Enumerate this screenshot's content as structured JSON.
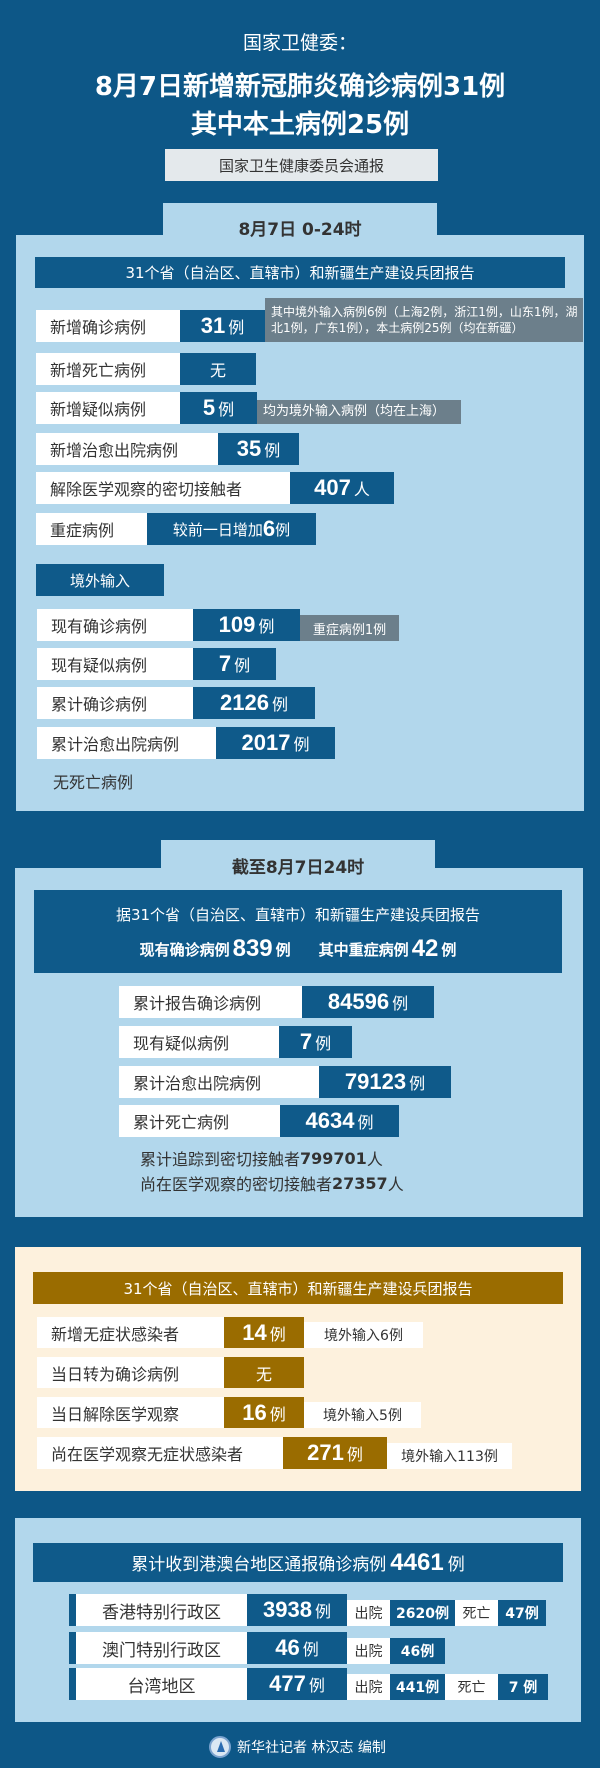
{
  "colors": {
    "background": "#0d5787",
    "panel": "#b2d7ec",
    "value_box": "#0f5a8a",
    "note_box": "#6c7f8b",
    "asymptomatic_panel": "#fdf1dd",
    "asymptomatic_accent": "#9a6c00"
  },
  "header": {
    "subtitle": "国家卫健委：",
    "title_line1": "8月7日新增新冠肺炎确诊病例31例",
    "title_line2": "其中本土病例25例",
    "source": "国家卫生健康委员会通报"
  },
  "daily": {
    "tab": "8月7日 0-24时",
    "banner": "31个省（自治区、直辖市）和新疆生产建设兵团报告",
    "rows": [
      {
        "label": "新增确诊病例",
        "value": "31",
        "unit": "例",
        "note": "其中境外输入病例6例（上海2例，浙江1例，山东1例，湖北1例，广东1例），本土病例25例（均在新疆）"
      },
      {
        "label": "新增死亡病例",
        "value": "无"
      },
      {
        "label": "新增疑似病例",
        "value": "5",
        "unit": "例",
        "note": "均为境外输入病例（均在上海）"
      },
      {
        "label": "新增治愈出院病例",
        "value": "35",
        "unit": "例"
      },
      {
        "label": "解除医学观察的密切接触者",
        "value": "407",
        "unit": "人"
      },
      {
        "label": "重症病例",
        "prefix": "较前一日增加",
        "value": "6",
        "unit": "例"
      }
    ],
    "overseas": {
      "tab": "境外输入",
      "rows": [
        {
          "label": "现有确诊病例",
          "value": "109",
          "unit": "例",
          "note": "重症病例1例"
        },
        {
          "label": "现有疑似病例",
          "value": "7",
          "unit": "例"
        },
        {
          "label": "累计确诊病例",
          "value": "2126",
          "unit": "例"
        },
        {
          "label": "累计治愈出院病例",
          "value": "2017",
          "unit": "例"
        }
      ],
      "footnote": "无死亡病例"
    }
  },
  "cumulative": {
    "tab": "截至8月7日24时",
    "banner": "据31个省（自治区、直辖市）和新疆生产建设兵团报告",
    "current_label": "现有确诊病例",
    "current_value": "839",
    "current_unit": "例",
    "severe_label": "其中重症病例",
    "severe_value": "42",
    "severe_unit": "例",
    "rows": [
      {
        "label": "累计报告确诊病例",
        "value": "84596",
        "unit": "例"
      },
      {
        "label": "现有疑似病例",
        "value": "7",
        "unit": "例"
      },
      {
        "label": "累计治愈出院病例",
        "value": "79123",
        "unit": "例"
      },
      {
        "label": "累计死亡病例",
        "value": "4634",
        "unit": "例"
      }
    ],
    "traced": {
      "label": "累计追踪到密切接触者",
      "value": "799701",
      "unit": "人"
    },
    "observed": {
      "label": "尚在医学观察的密切接触者",
      "value": "27357",
      "unit": "人"
    }
  },
  "asymptomatic": {
    "banner": "31个省（自治区、直辖市）和新疆生产建设兵团报告",
    "rows": [
      {
        "label": "新增无症状感染者",
        "value": "14",
        "unit": "例",
        "note": "境外输入6例"
      },
      {
        "label": "当日转为确诊病例",
        "value": "无"
      },
      {
        "label": "当日解除医学观察",
        "value": "16",
        "unit": "例",
        "note": "境外输入5例"
      },
      {
        "label": "尚在医学观察无症状感染者",
        "value": "271",
        "unit": "例",
        "note": "境外输入113例"
      }
    ]
  },
  "hmt": {
    "banner_label": "累计收到港澳台地区通报确诊病例",
    "total": "4461",
    "unit": "例",
    "regions": [
      {
        "name": "香港特别行政区",
        "value": "3938",
        "unit": "例",
        "discharged_label": "出院",
        "discharged": "2620例",
        "death_label": "死亡",
        "deaths": "47例"
      },
      {
        "name": "澳门特别行政区",
        "value": "46",
        "unit": "例",
        "discharged_label": "出院",
        "discharged": "46例"
      },
      {
        "name": "台湾地区",
        "value": "477",
        "unit": "例",
        "discharged_label": "出院",
        "discharged": "441例",
        "death_label": "死亡",
        "deaths": "7 例"
      }
    ]
  },
  "footer": {
    "credit": "新华社记者 林汉志 编制",
    "logo_icon": "xinhua-logo-icon"
  }
}
